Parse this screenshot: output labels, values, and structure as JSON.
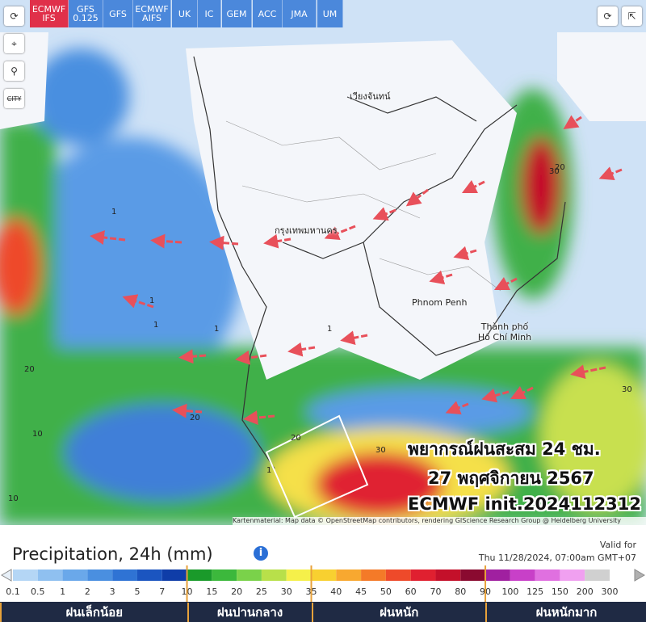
{
  "toolbar": {
    "models": [
      "ECMWF IFS",
      "GFS 0.125",
      "GFS",
      "ECMWF AIFS",
      "UK",
      "IC",
      "GEM",
      "ACC",
      "JMA",
      "UM"
    ],
    "city": "CITY"
  },
  "map": {
    "places": [
      "เวียงจันทน์",
      "กรุงเทพมหานคร",
      "Phnom Penh",
      "Thành phố Hồ Chí Minh"
    ],
    "contour_labels": [
      "1",
      "1",
      "1",
      "1",
      "20",
      "10",
      "20",
      "30",
      "30",
      "20",
      "10",
      "20",
      "30",
      "1",
      "1"
    ],
    "overlay": [
      "พยากรณ์ฝนสะสม 24 ชม.",
      "27 พฤศจิกายน 2567",
      "ECMWF init.2024112312"
    ],
    "attribution": "Kartenmaterial: Map data © OpenStreetMap contributors, rendering GIScience Research Group @ Heidelberg University"
  },
  "legend": {
    "title": "Precipitation, 24h (mm)",
    "valid_label": "Valid for",
    "valid_time": "Thu 11/28/2024, 07:00am GMT+07",
    "ticks": [
      0.1,
      0.5,
      1,
      2,
      3,
      5,
      7,
      10,
      15,
      20,
      25,
      30,
      35,
      40,
      45,
      50,
      60,
      70,
      80,
      90,
      100,
      125,
      150,
      200,
      300
    ],
    "colors": [
      "#b4d6f5",
      "#8fc0f0",
      "#6aa8ea",
      "#4a8fe0",
      "#2f73d4",
      "#1b55c0",
      "#0f3da8",
      "#1a9a2a",
      "#3cb83c",
      "#7ad24a",
      "#b8e04a",
      "#f5f04a",
      "#f8d030",
      "#f8a830",
      "#f47a28",
      "#ee4a2a",
      "#e02030",
      "#c4102a",
      "#8a0a30",
      "#a020a0",
      "#c840c8",
      "#e070e0",
      "#f0a0f0",
      "#d0d0d0"
    ],
    "categories": [
      "ฝนเล็กน้อย",
      "ฝนปานกลาง",
      "ฝนหนัก",
      "ฝนหนักมาก"
    ]
  }
}
